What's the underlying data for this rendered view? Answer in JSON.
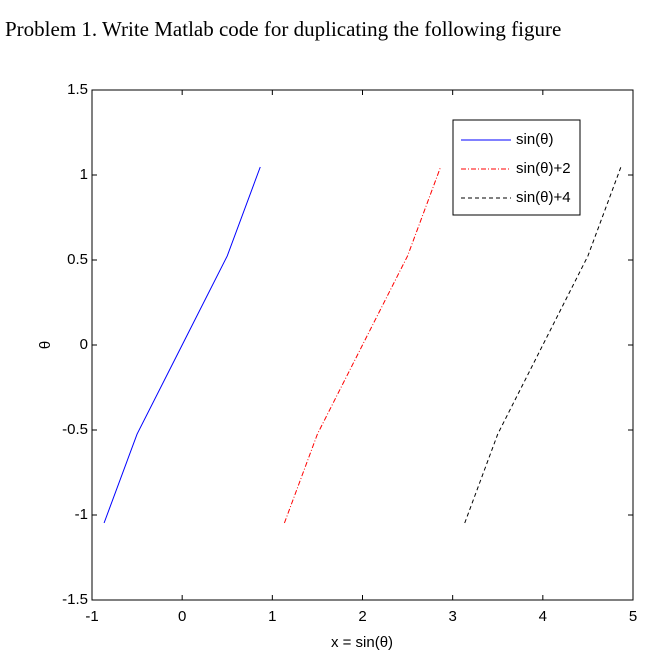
{
  "document_title": "Problem 1. Write Matlab code for duplicating the following figure",
  "chart_data": {
    "type": "line",
    "xlabel": "x = sin(θ)",
    "ylabel": "θ",
    "xlim": [
      -1,
      5
    ],
    "xticks": [
      -1,
      0,
      1,
      2,
      3,
      4,
      5
    ],
    "ylim": [
      -1.5,
      1.5
    ],
    "yticks": [
      -1.5,
      -1,
      -0.5,
      0,
      0.5,
      1,
      1.5
    ],
    "legend": "upper right",
    "series": [
      {
        "name": "sin(θ)",
        "color": "#0000ff",
        "linestyle": "solid",
        "x": [
          -0.866,
          -0.5,
          0,
          0.5,
          0.866
        ],
        "values": [
          -1.047,
          -0.524,
          0,
          0.524,
          1.047
        ]
      },
      {
        "name": "sin(θ)+2",
        "color": "#ff0000",
        "linestyle": "dashdot",
        "x": [
          1.134,
          1.5,
          2,
          2.5,
          2.866
        ],
        "values": [
          -1.047,
          -0.524,
          0,
          0.524,
          1.047
        ]
      },
      {
        "name": "sin(θ)+4",
        "color": "#000000",
        "linestyle": "dashed",
        "x": [
          3.134,
          3.5,
          4,
          4.5,
          4.866
        ],
        "values": [
          -1.047,
          -0.524,
          0,
          0.524,
          1.047
        ]
      }
    ]
  }
}
